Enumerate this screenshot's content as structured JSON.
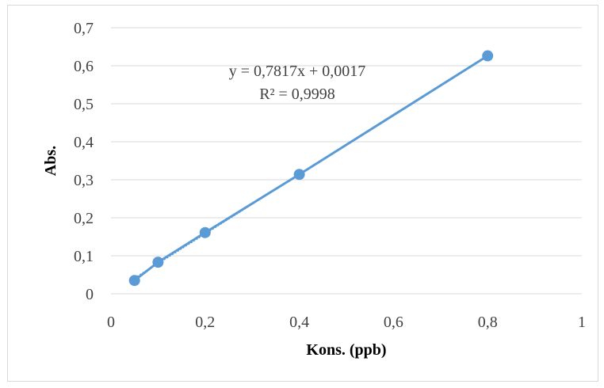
{
  "chart_data": {
    "type": "scatter",
    "xlabel": "Kons. (ppb)",
    "ylabel": "Abs.",
    "xlim": [
      0,
      1
    ],
    "ylim": [
      0,
      0.7
    ],
    "x_ticks": [
      "0",
      "0,2",
      "0,4",
      "0,6",
      "0,8",
      "1"
    ],
    "y_ticks": [
      "0",
      "0,1",
      "0,2",
      "0,3",
      "0,4",
      "0,5",
      "0,6",
      "0,7"
    ],
    "grid": true,
    "series": [
      {
        "x": [
          0.05,
          0.1,
          0.2,
          0.4,
          0.8
        ],
        "y": [
          0.035,
          0.083,
          0.161,
          0.314,
          0.626
        ],
        "color": "#5b9bd5"
      }
    ],
    "trendline": {
      "type": "linear",
      "slope": 0.7817,
      "intercept": 0.0017,
      "equation": "y = 0,7817x + 0,0017",
      "r_squared": "R² = 0,9998",
      "color": "#5b9bd5"
    }
  }
}
